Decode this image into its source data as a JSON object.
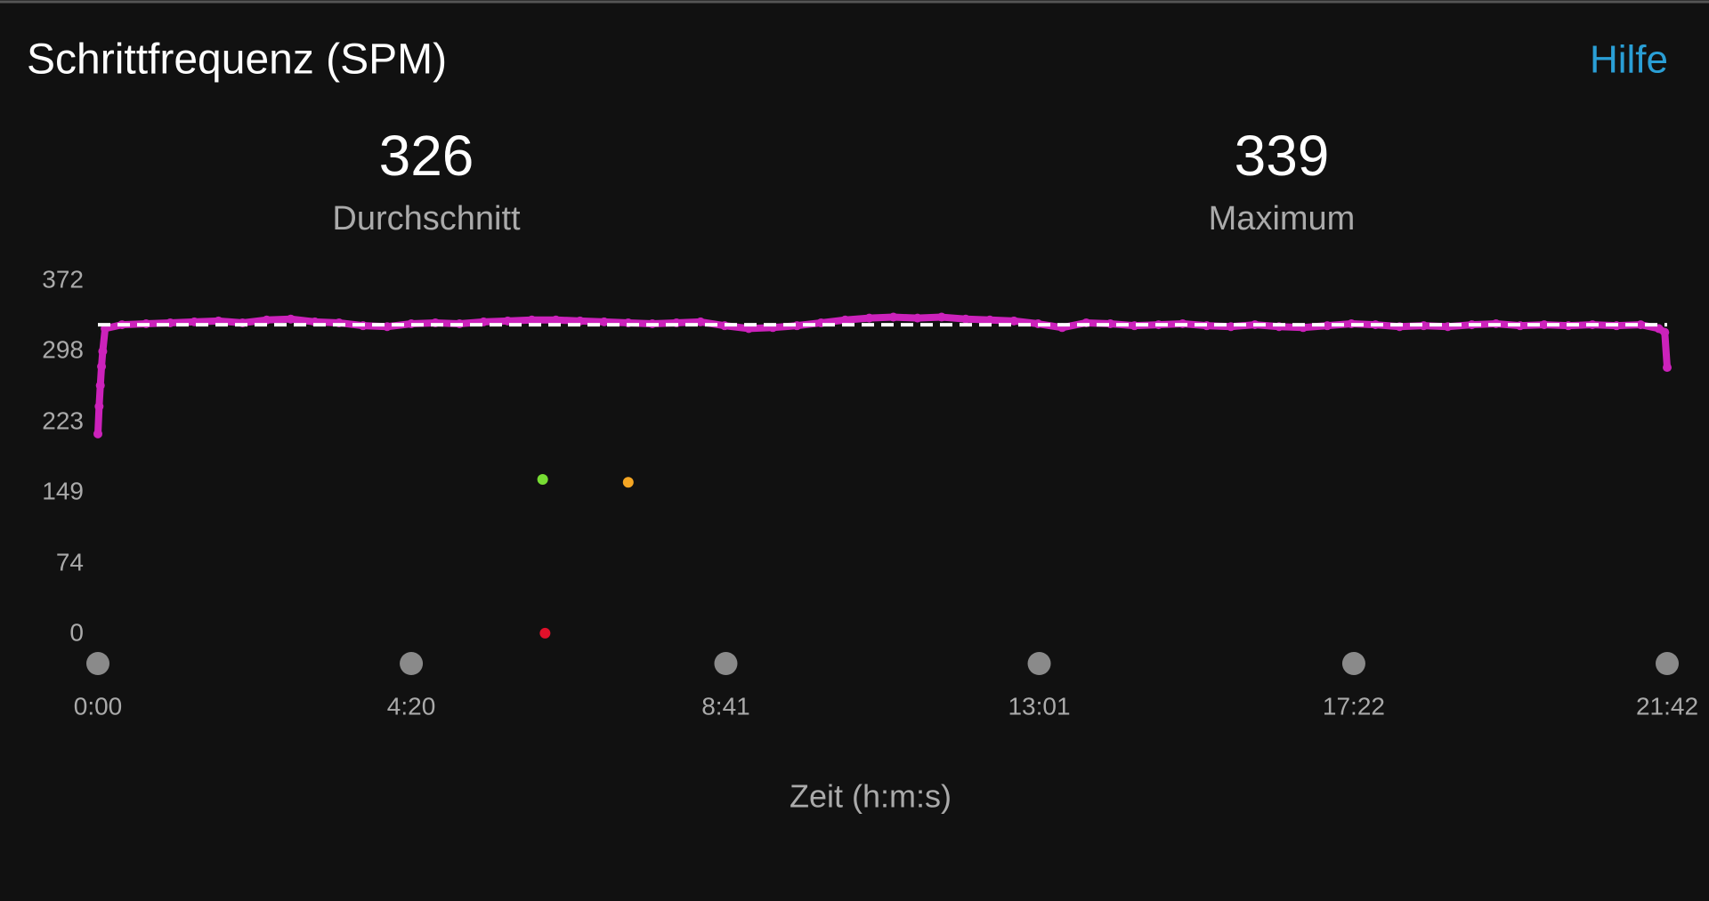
{
  "chart_data": {
    "type": "scatter",
    "title": "Schrittfrequenz (SPM)",
    "help": "Hilfe",
    "average": {
      "value": 326,
      "label": "Durchschnitt"
    },
    "maximum": {
      "value": 339,
      "label": "Maximum"
    },
    "x_label": "Zeit (h:m:s)",
    "xlim": [
      0,
      1302
    ],
    "xticks": [
      {
        "value": 0,
        "label": "0:00"
      },
      {
        "value": 260,
        "label": "4:20"
      },
      {
        "value": 521,
        "label": "8:41"
      },
      {
        "value": 781,
        "label": "13:01"
      },
      {
        "value": 1042,
        "label": "17:22"
      },
      {
        "value": 1302,
        "label": "21:42"
      }
    ],
    "ylim": [
      0,
      372
    ],
    "yticks": [
      0,
      74,
      149,
      223,
      298,
      372
    ],
    "series": [
      {
        "color": "#cc22bb",
        "x": [
          0,
          1,
          2,
          3,
          4,
          6,
          20,
          40,
          60,
          80,
          100,
          120,
          140,
          160,
          180,
          200,
          220,
          240,
          260,
          280,
          300,
          320,
          340,
          360,
          380,
          400,
          420,
          440,
          460,
          480,
          500,
          520,
          540,
          560,
          580,
          600,
          620,
          640,
          660,
          680,
          700,
          720,
          740,
          760,
          780,
          800,
          820,
          840,
          860,
          880,
          900,
          920,
          940,
          960,
          980,
          1000,
          1020,
          1040,
          1060,
          1080,
          1100,
          1120,
          1140,
          1160,
          1180,
          1200,
          1220,
          1240,
          1260,
          1280,
          1295,
          1300,
          1302
        ],
        "values": [
          211,
          240,
          262,
          282,
          298,
          322,
          326,
          327,
          328,
          329,
          330,
          328,
          331,
          332,
          329,
          328,
          325,
          324,
          327,
          328,
          327,
          329,
          330,
          331,
          331,
          330,
          329,
          328,
          327,
          328,
          329,
          325,
          322,
          323,
          325,
          328,
          331,
          333,
          334,
          333,
          334,
          332,
          331,
          330,
          327,
          323,
          328,
          327,
          325,
          326,
          327,
          325,
          324,
          326,
          324,
          323,
          325,
          327,
          326,
          324,
          325,
          324,
          326,
          327,
          325,
          326,
          325,
          326,
          325,
          326,
          322,
          318,
          281
        ]
      },
      {
        "color": "#77dd33",
        "x": [
          369
        ],
        "values": [
          163
        ]
      },
      {
        "color": "#f5a623",
        "x": [
          440
        ],
        "values": [
          160
        ]
      },
      {
        "color": "#e0102a",
        "x": [
          371
        ],
        "values": [
          1
        ]
      }
    ]
  }
}
